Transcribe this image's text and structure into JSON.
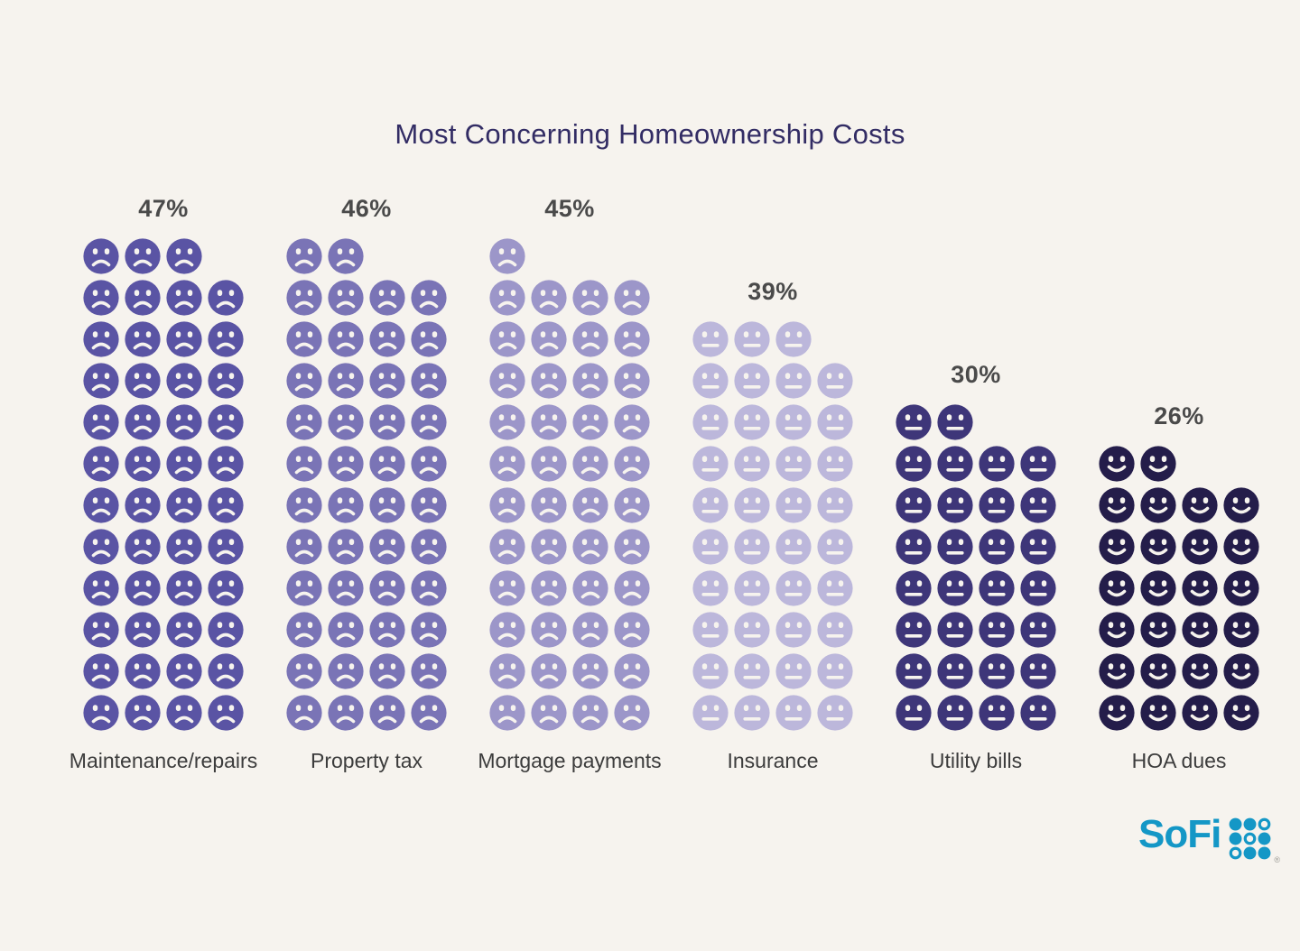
{
  "title": "Most Concerning Homeownership Costs",
  "chart_data": {
    "type": "pictogram",
    "title": "Most Concerning Homeownership Costs",
    "grid_columns": 4,
    "partial_row_position": "top-left",
    "icons_bottom_aligned": true,
    "legend_position": "none",
    "categories": [
      "Maintenance/repairs",
      "Property tax",
      "Mortgage payments",
      "Insurance",
      "Utility bills",
      "HOA dues"
    ],
    "values": [
      47,
      46,
      45,
      39,
      30,
      26
    ],
    "columns": [
      {
        "label": "Maintenance/repairs",
        "value": 47,
        "value_label": "47%",
        "face_color": "#5A54A4",
        "expression": "frown"
      },
      {
        "label": "Property tax",
        "value": 46,
        "value_label": "46%",
        "face_color": "#7A74B6",
        "expression": "frown"
      },
      {
        "label": "Mortgage payments",
        "value": 45,
        "value_label": "45%",
        "face_color": "#9C96C9",
        "expression": "frown"
      },
      {
        "label": "Insurance",
        "value": 39,
        "value_label": "39%",
        "face_color": "#BCB7DB",
        "expression": "neutral"
      },
      {
        "label": "Utility bills",
        "value": 30,
        "value_label": "30%",
        "face_color": "#3E3679",
        "expression": "neutral"
      },
      {
        "label": "HOA dues",
        "value": 26,
        "value_label": "26%",
        "face_color": "#241D4A",
        "expression": "smile"
      }
    ]
  },
  "branding": {
    "logo_text": "SoFi",
    "logo_color": "#1497C6",
    "registered_mark": "®"
  },
  "colors": {
    "background": "#F6F3EE",
    "title": "#322C64",
    "percent_label": "#4A4A4A",
    "category_label": "#3C3C3C",
    "face_features": "#F6F3EE"
  }
}
